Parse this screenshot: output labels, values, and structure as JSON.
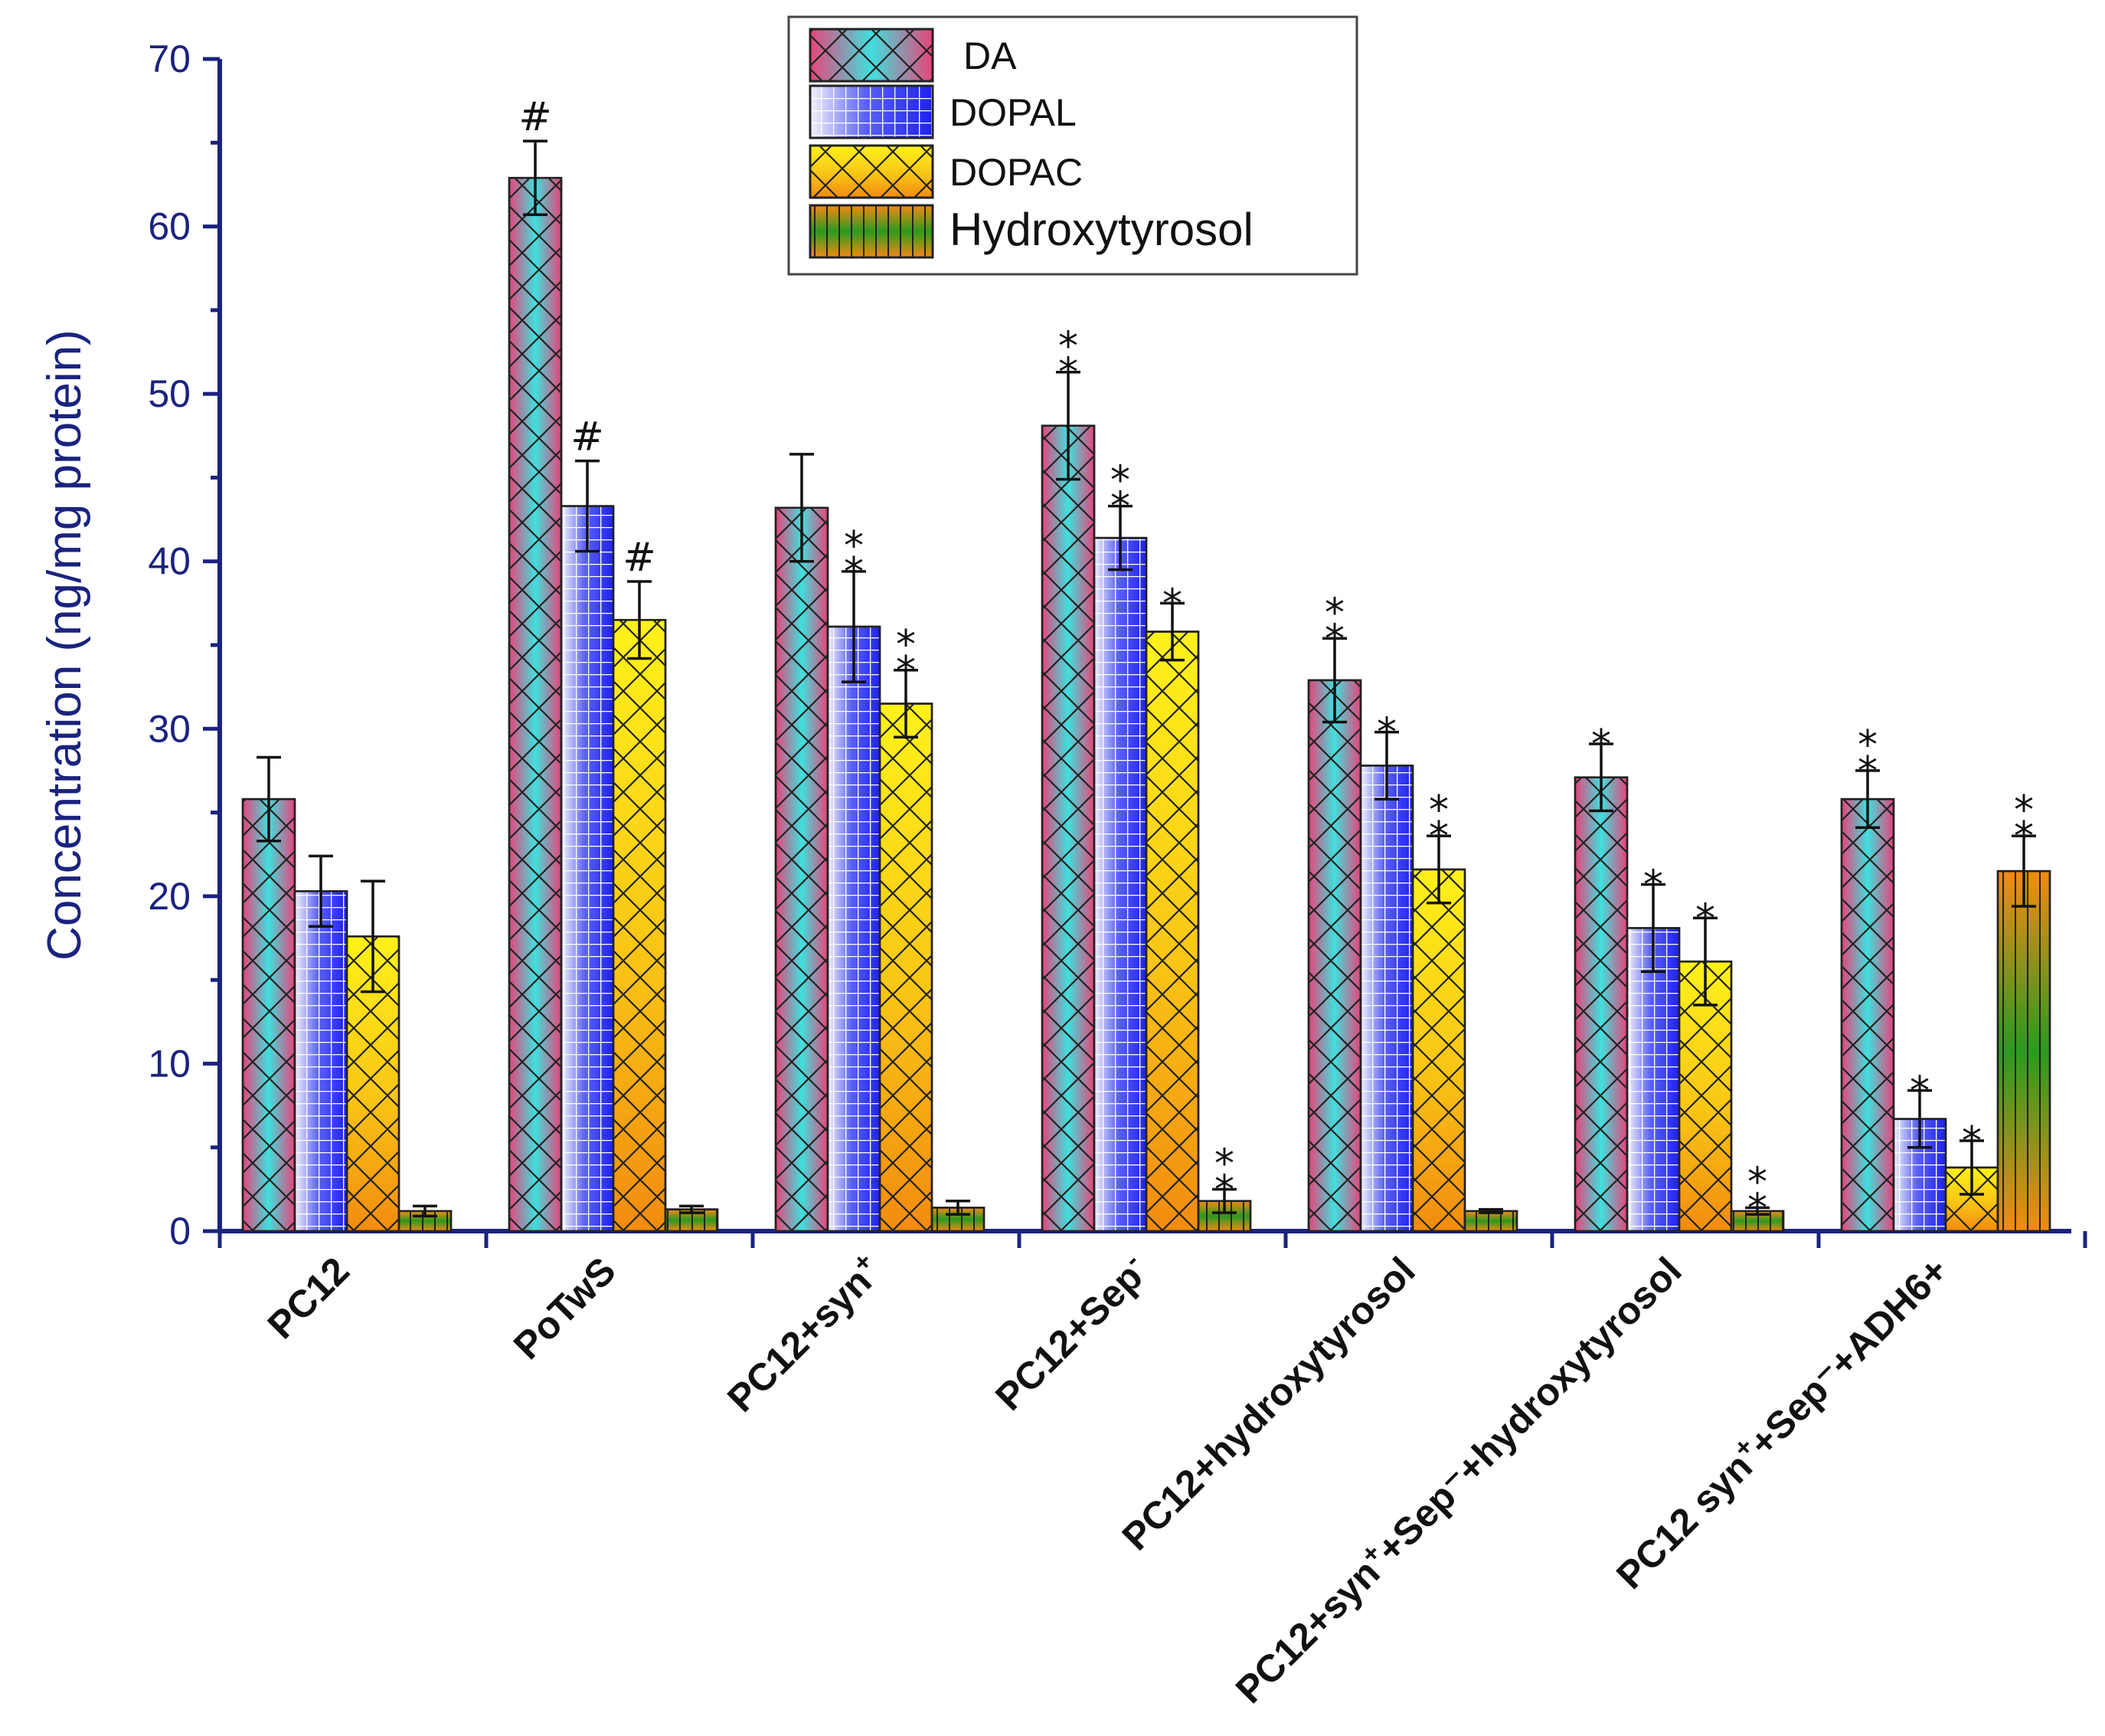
{
  "chart_data": {
    "type": "bar",
    "ylabel": "Concentration (ng/mg protein)",
    "xlabel": "",
    "ylim": [
      0,
      70
    ],
    "yticks": [
      0,
      10,
      20,
      30,
      40,
      50,
      60,
      70
    ],
    "categories": [
      {
        "main": "PC12",
        "sup": "",
        "rest": ""
      },
      {
        "main": "PoTwS",
        "sup": "",
        "rest": ""
      },
      {
        "main": "PC12+syn",
        "sup": "+",
        "rest": ""
      },
      {
        "main": "PC12+Sep",
        "sup": "-",
        "rest": ""
      },
      {
        "main": "PC12+hydroxytyrosol",
        "sup": "",
        "rest": ""
      },
      {
        "main": "PC12+syn",
        "sup": "+",
        "rest": "+Sep⁻+hydroxytyrosol"
      },
      {
        "main": "PC12 syn",
        "sup": "+",
        "rest": "+Sep⁻+ADH6+"
      }
    ],
    "series": [
      {
        "name": "DA",
        "values": [
          25.8,
          62.9,
          43.2,
          48.1,
          32.9,
          27.1,
          25.8
        ],
        "errors": [
          2.5,
          2.2,
          3.2,
          3.2,
          2.5,
          2.0,
          1.7
        ],
        "annotations": [
          "",
          "#",
          "",
          "**",
          "**",
          "*",
          "**"
        ]
      },
      {
        "name": "DOPAL",
        "values": [
          20.3,
          43.3,
          36.1,
          41.4,
          27.8,
          18.1,
          6.7
        ],
        "errors": [
          2.1,
          2.7,
          3.3,
          1.9,
          2.0,
          2.6,
          1.7
        ],
        "annotations": [
          "",
          "#",
          "**",
          "**",
          "*",
          "*",
          "*"
        ]
      },
      {
        "name": "DOPAC",
        "values": [
          17.6,
          36.5,
          31.5,
          35.8,
          21.6,
          16.1,
          3.8
        ],
        "errors": [
          3.3,
          2.3,
          2.0,
          1.7,
          2.0,
          2.6,
          1.6
        ],
        "annotations": [
          "",
          "#",
          "**",
          "*",
          "**",
          "*",
          "*"
        ]
      },
      {
        "name": "Hydroxytyrosol",
        "values": [
          1.2,
          1.3,
          1.4,
          1.8,
          1.2,
          1.2,
          21.5
        ],
        "errors": [
          0.3,
          0.2,
          0.4,
          0.7,
          0.1,
          0.2,
          2.1
        ],
        "annotations": [
          "",
          "",
          "",
          "**",
          "",
          "**",
          "**"
        ]
      }
    ],
    "legend": [
      "DA",
      "DOPAL",
      "DOPAC",
      "Hydroxytyrosol"
    ],
    "legend_position": "top-right"
  },
  "colors": {
    "axis": "#1a237e",
    "da_pink": "#e8437a",
    "da_cyan": "#3fe0dd",
    "dopal_blue": "#1e22ee",
    "dopal_light": "#e9ecf8",
    "dopac_yellow": "#fff21a",
    "dopac_orange": "#f28b0f",
    "hyd_green": "#2a9a1f",
    "hyd_orange": "#f58a12"
  }
}
